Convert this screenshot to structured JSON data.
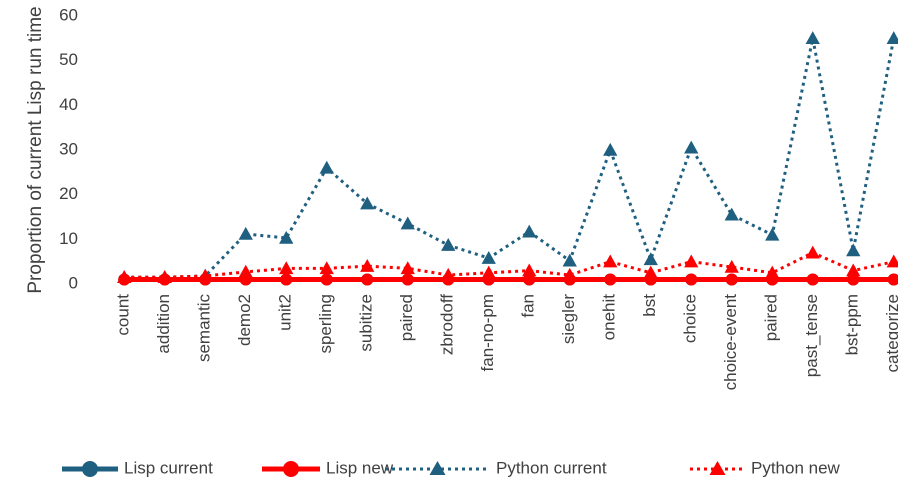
{
  "chart_data": {
    "type": "line",
    "y_label": "Proportion of current Lisp run time",
    "categories": [
      "count",
      "addition",
      "semantic",
      "demo2",
      "unit2",
      "sperling",
      "subitize",
      "paired",
      "zbrodoff",
      "fan-no-pm",
      "fan",
      "siegler",
      "onehit",
      "bst",
      "choice",
      "choice-event",
      "paired",
      "past_tense",
      "bst-ppm",
      "categorize"
    ],
    "series": [
      {
        "name": "Lisp current",
        "color": "#1f5f80",
        "style": "solid",
        "marker": "circle",
        "values": [
          1,
          1,
          1,
          1,
          1,
          1,
          1,
          1,
          1,
          1,
          1,
          1,
          1,
          1,
          1,
          1,
          1,
          1,
          1,
          1
        ]
      },
      {
        "name": "Lisp new",
        "color": "#ff0000",
        "style": "solid",
        "marker": "circle",
        "values": [
          1,
          1,
          1,
          1,
          1,
          1,
          1,
          1,
          1,
          1,
          1,
          1,
          1,
          1,
          1,
          1,
          1,
          1,
          1,
          1
        ]
      },
      {
        "name": "Python current",
        "color": "#1f5f80",
        "style": "dotted",
        "marker": "triangle",
        "values": [
          1.5,
          1.5,
          1.8,
          11.2,
          10.3,
          26,
          18,
          13.5,
          8.7,
          5.8,
          11.7,
          5.2,
          30,
          5.5,
          30.5,
          15.5,
          11,
          55,
          7.5,
          55
        ]
      },
      {
        "name": "Python new",
        "color": "#ff0000",
        "style": "dotted",
        "marker": "triangle",
        "values": [
          1.5,
          1.5,
          1.8,
          2.7,
          3.5,
          3.5,
          4,
          3.5,
          2,
          2.5,
          3,
          2,
          5,
          2.5,
          5,
          3.8,
          2.5,
          7,
          3,
          5
        ]
      }
    ],
    "ylim": [
      0,
      60
    ],
    "yticks": [
      0,
      10,
      20,
      30,
      40,
      50,
      60
    ],
    "grid": false
  }
}
